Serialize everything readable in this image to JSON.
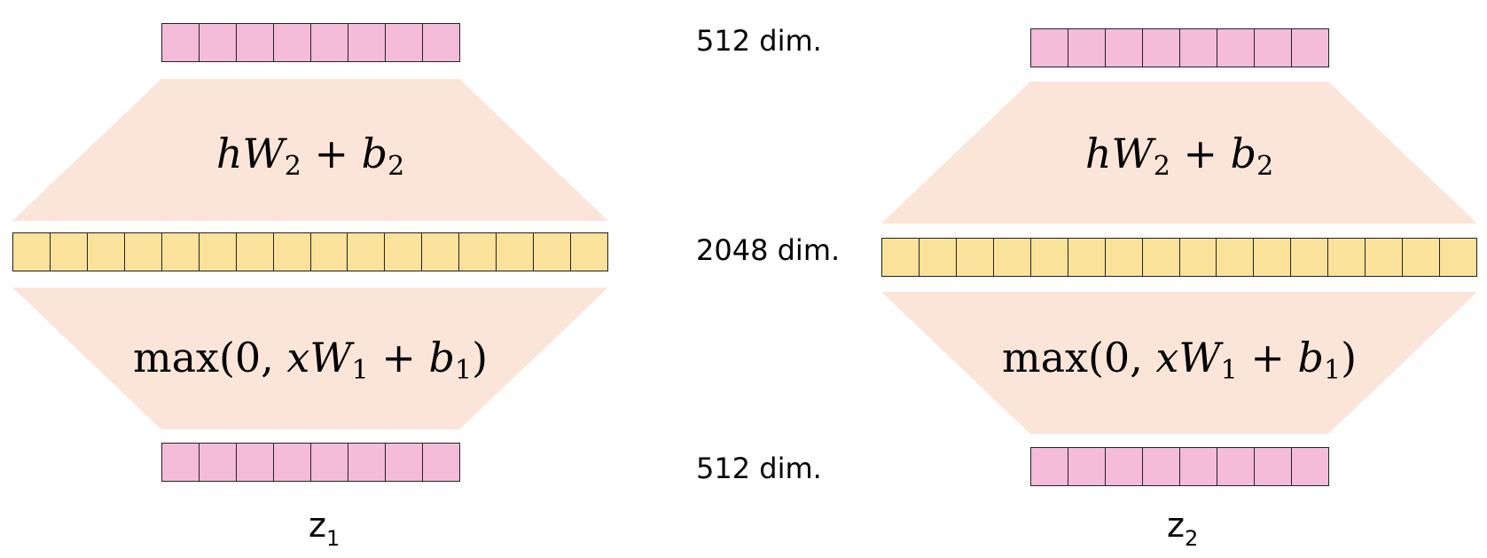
{
  "colors": {
    "vector_512": "#f4bcd9",
    "vector_2048": "#fbe29b",
    "layer_fill": "#fae5d8",
    "cell_border": "#222222"
  },
  "dims": {
    "top": "512 dim.",
    "middle": "2048 dim.",
    "bottom": "512 dim."
  },
  "left": {
    "top_formula": {
      "a": "h",
      "W": "W",
      "W_sub": "2",
      "plus": " + ",
      "b": "b",
      "b_sub": "2"
    },
    "bottom_formula": {
      "pre": "max(0, ",
      "x": "x",
      "W": "W",
      "W_sub": "1",
      "plus": " + ",
      "b": "b",
      "b_sub": "1",
      "post": ")"
    },
    "z_main": "z",
    "z_sub": "1",
    "cells_512": 8,
    "cells_2048": 16
  },
  "right": {
    "top_formula": {
      "a": "h",
      "W": "W",
      "W_sub": "2",
      "plus": " + ",
      "b": "b",
      "b_sub": "2"
    },
    "bottom_formula": {
      "pre": "max(0, ",
      "x": "x",
      "W": "W",
      "W_sub": "1",
      "plus": " + ",
      "b": "b",
      "b_sub": "1",
      "post": ")"
    },
    "z_main": "z",
    "z_sub": "2",
    "cells_512": 8,
    "cells_2048": 16
  }
}
